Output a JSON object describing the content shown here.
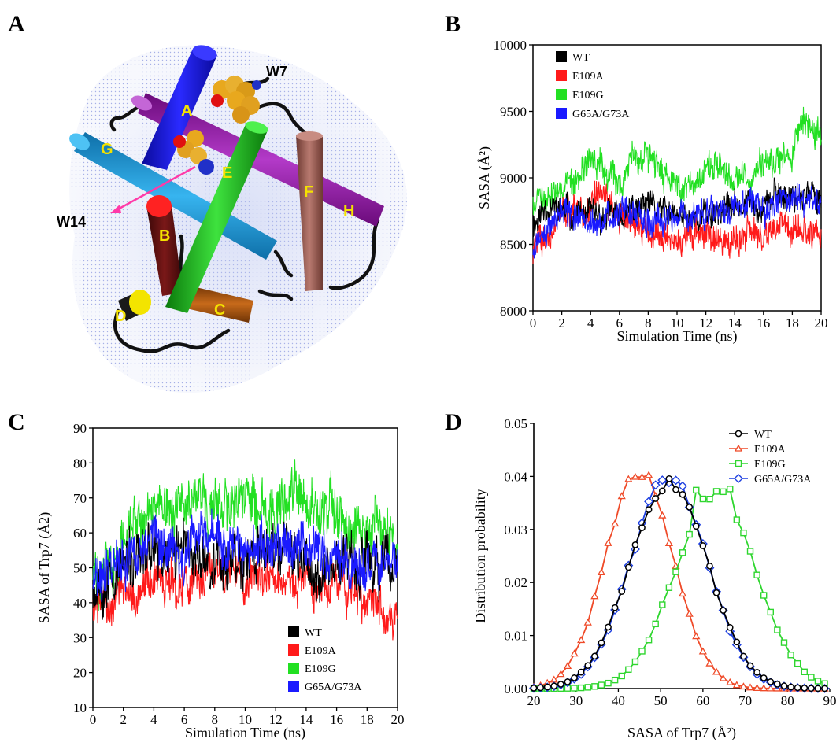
{
  "panels": {
    "A": {
      "letter": "A",
      "helices": [
        "A",
        "B",
        "C",
        "D",
        "E",
        "F",
        "G",
        "H"
      ],
      "residue_labels": [
        "W7",
        "W14"
      ]
    },
    "B": {
      "letter": "B"
    },
    "C": {
      "letter": "C"
    },
    "D": {
      "letter": "D"
    }
  },
  "colors": {
    "WT": "#000000",
    "E109A": "#ff1a1a",
    "E109G": "#22e022",
    "G65A/G73A": "#1a1aff",
    "D_WT": "#000000",
    "D_E109A": "#ef4a28",
    "D_E109G": "#2fd62f",
    "D_G65A": "#1d3fe0"
  },
  "chart_data": [
    {
      "id": "B",
      "type": "line",
      "title": "",
      "xlabel": "Simulation Time (ns)",
      "ylabel": "SASA (Å²)",
      "xlim": [
        0,
        20
      ],
      "ylim": [
        8000,
        10000
      ],
      "xticks": [
        "0",
        "2",
        "4",
        "6",
        "8",
        "10",
        "12",
        "14",
        "16",
        "18",
        "20"
      ],
      "yticks": [
        "8000",
        "8500",
        "9000",
        "9500",
        "10000"
      ],
      "legend_position": "top-left",
      "series": [
        {
          "name": "WT",
          "mean": [
            8650,
            8800,
            8760,
            8720,
            8700,
            8700,
            8720,
            8760,
            8780,
            8740,
            8690,
            8700,
            8730,
            8760,
            8780,
            8800,
            8830,
            8860,
            8880,
            8870,
            8850
          ],
          "noise": 110
        },
        {
          "name": "E109A",
          "mean": [
            8450,
            8600,
            8700,
            8760,
            8800,
            8850,
            8700,
            8650,
            8600,
            8600,
            8500,
            8620,
            8600,
            8560,
            8520,
            8540,
            8560,
            8600,
            8620,
            8600,
            8580
          ],
          "noise": 120
        },
        {
          "name": "E109G",
          "mean": [
            8800,
            8850,
            8950,
            9050,
            9150,
            9100,
            9000,
            9150,
            9180,
            9050,
            8950,
            8950,
            9050,
            9080,
            9000,
            9000,
            9120,
            9150,
            9200,
            9450,
            9300
          ],
          "noise": 120
        },
        {
          "name": "G65A/G73A",
          "mean": [
            8400,
            8600,
            8750,
            8700,
            8680,
            8700,
            8720,
            8720,
            8700,
            8690,
            8700,
            8720,
            8740,
            8760,
            8780,
            8780,
            8790,
            8800,
            8820,
            8830,
            8820
          ],
          "noise": 110
        }
      ]
    },
    {
      "id": "C",
      "type": "line",
      "title": "",
      "xlabel": "Simulation Time (ns)",
      "ylabel": "SASA of Trp7 (Å2)",
      "xlim": [
        0,
        20
      ],
      "ylim": [
        10,
        90
      ],
      "xticks": [
        "0",
        "2",
        "4",
        "6",
        "8",
        "10",
        "12",
        "14",
        "16",
        "18",
        "20"
      ],
      "yticks": [
        "10",
        "20",
        "30",
        "40",
        "50",
        "60",
        "70",
        "80",
        "90"
      ],
      "legend_position": "bottom-right",
      "series": [
        {
          "name": "WT",
          "mean": [
            45,
            48,
            50,
            52,
            54,
            55,
            54,
            53,
            54,
            53,
            52,
            54,
            55,
            54,
            52,
            50,
            52,
            53,
            51,
            50,
            49
          ],
          "noise": 8
        },
        {
          "name": "E109A",
          "mean": [
            38,
            40,
            42,
            44,
            45,
            46,
            45,
            47,
            50,
            50,
            48,
            47,
            46,
            47,
            46,
            45,
            45,
            44,
            42,
            40,
            38
          ],
          "noise": 6
        },
        {
          "name": "E109G",
          "mean": [
            45,
            50,
            56,
            62,
            66,
            68,
            68,
            67,
            68,
            70,
            68,
            66,
            65,
            68,
            67,
            66,
            66,
            64,
            62,
            60,
            58
          ],
          "noise": 8
        },
        {
          "name": "G65A/G73A",
          "mean": [
            46,
            50,
            52,
            55,
            56,
            56,
            57,
            58,
            58,
            56,
            55,
            56,
            58,
            56,
            55,
            54,
            54,
            53,
            52,
            51,
            50
          ],
          "noise": 7
        }
      ]
    },
    {
      "id": "D",
      "type": "line",
      "title": "",
      "xlabel": "SASA of Trp7 (Å²)",
      "ylabel": "Distribution probability",
      "xlim": [
        20,
        90
      ],
      "ylim": [
        0,
        0.05
      ],
      "xticks": [
        "20",
        "30",
        "40",
        "50",
        "60",
        "70",
        "80",
        "90"
      ],
      "yticks": [
        "0.00",
        "0.01",
        "0.02",
        "0.03",
        "0.04",
        "0.05"
      ],
      "legend_position": "top-right",
      "series": [
        {
          "name": "WT",
          "marker": "circle",
          "center": 52,
          "sigma": 9.2,
          "peak": 0.039
        },
        {
          "name": "E109A",
          "marker": "triangle",
          "center": 45,
          "sigma": 8.0,
          "peak": 0.041
        },
        {
          "name": "E109G",
          "marker": "square",
          "center": 63,
          "sigma": 9.5,
          "peak": 0.037
        },
        {
          "name": "G65A/G73A",
          "marker": "diamond",
          "center": 52,
          "sigma": 9.0,
          "peak": 0.04
        }
      ]
    }
  ]
}
